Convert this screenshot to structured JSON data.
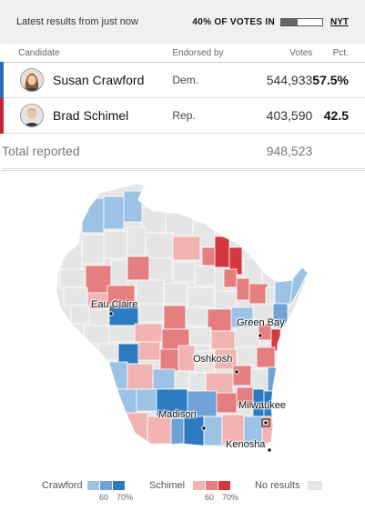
{
  "header": {
    "latest": "Latest results from just now",
    "votes_in": "40% OF VOTES IN",
    "votes_in_fraction": 0.4,
    "source": "NYT"
  },
  "table": {
    "headers": {
      "candidate": "Candidate",
      "endorsed": "Endorsed by",
      "votes": "Votes",
      "pct": "Pct."
    },
    "rows": [
      {
        "name": "Susan Crawford",
        "endorsed": "Dem.",
        "votes": "544,933",
        "pct": "57.5%",
        "color": "#2c6cae"
      },
      {
        "name": "Brad Schimel",
        "endorsed": "Rep.",
        "votes": "403,590",
        "pct": "42.5",
        "color": "#c8262f"
      }
    ],
    "total_label": "Total reported",
    "total_votes": "948,523"
  },
  "map": {
    "cities": {
      "eau_claire": "Eau Claire",
      "green_bay": "Green Bay",
      "oshkosh": "Oshkosh",
      "madison": "Madison",
      "milwaukee": "Milwaukee",
      "kenosha": "Kenosha"
    },
    "colors": {
      "crawford": [
        "#9cc3e6",
        "#6fa3d6",
        "#2c7bc0"
      ],
      "schimel": [
        "#f2b3b3",
        "#e57e7e",
        "#d4373e"
      ],
      "no_results": "#e5e5e5"
    }
  },
  "legend": {
    "crawford": "Crawford",
    "schimel": "Schimel",
    "no_results": "No results",
    "tick_60": "60",
    "tick_70": "70%"
  }
}
